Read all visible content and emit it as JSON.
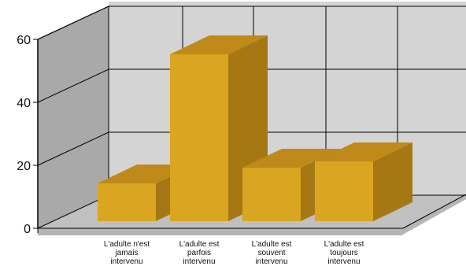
{
  "chart_data": {
    "type": "bar",
    "categories": [
      [
        "L'adulte n'est",
        "jamais",
        "intervenu"
      ],
      [
        "L'adulte est",
        "parfois",
        "intervenu"
      ],
      [
        "L'adulte est",
        "souvent",
        "intervenu"
      ],
      [
        "L'adulte est",
        "toujours",
        "intervenu"
      ]
    ],
    "values": [
      12,
      53,
      17,
      19
    ],
    "ylim": [
      0,
      60
    ],
    "yticks": [
      0,
      20,
      40,
      60
    ],
    "grid": true,
    "colors": {
      "bar_front": "#DAA520",
      "bar_top": "#C08A1A",
      "bar_side": "#A57814",
      "back_wall": "#D4D4D4",
      "left_wall": "#A9A9A9",
      "floor": "#C0C0C0",
      "grid": "#000000"
    }
  }
}
